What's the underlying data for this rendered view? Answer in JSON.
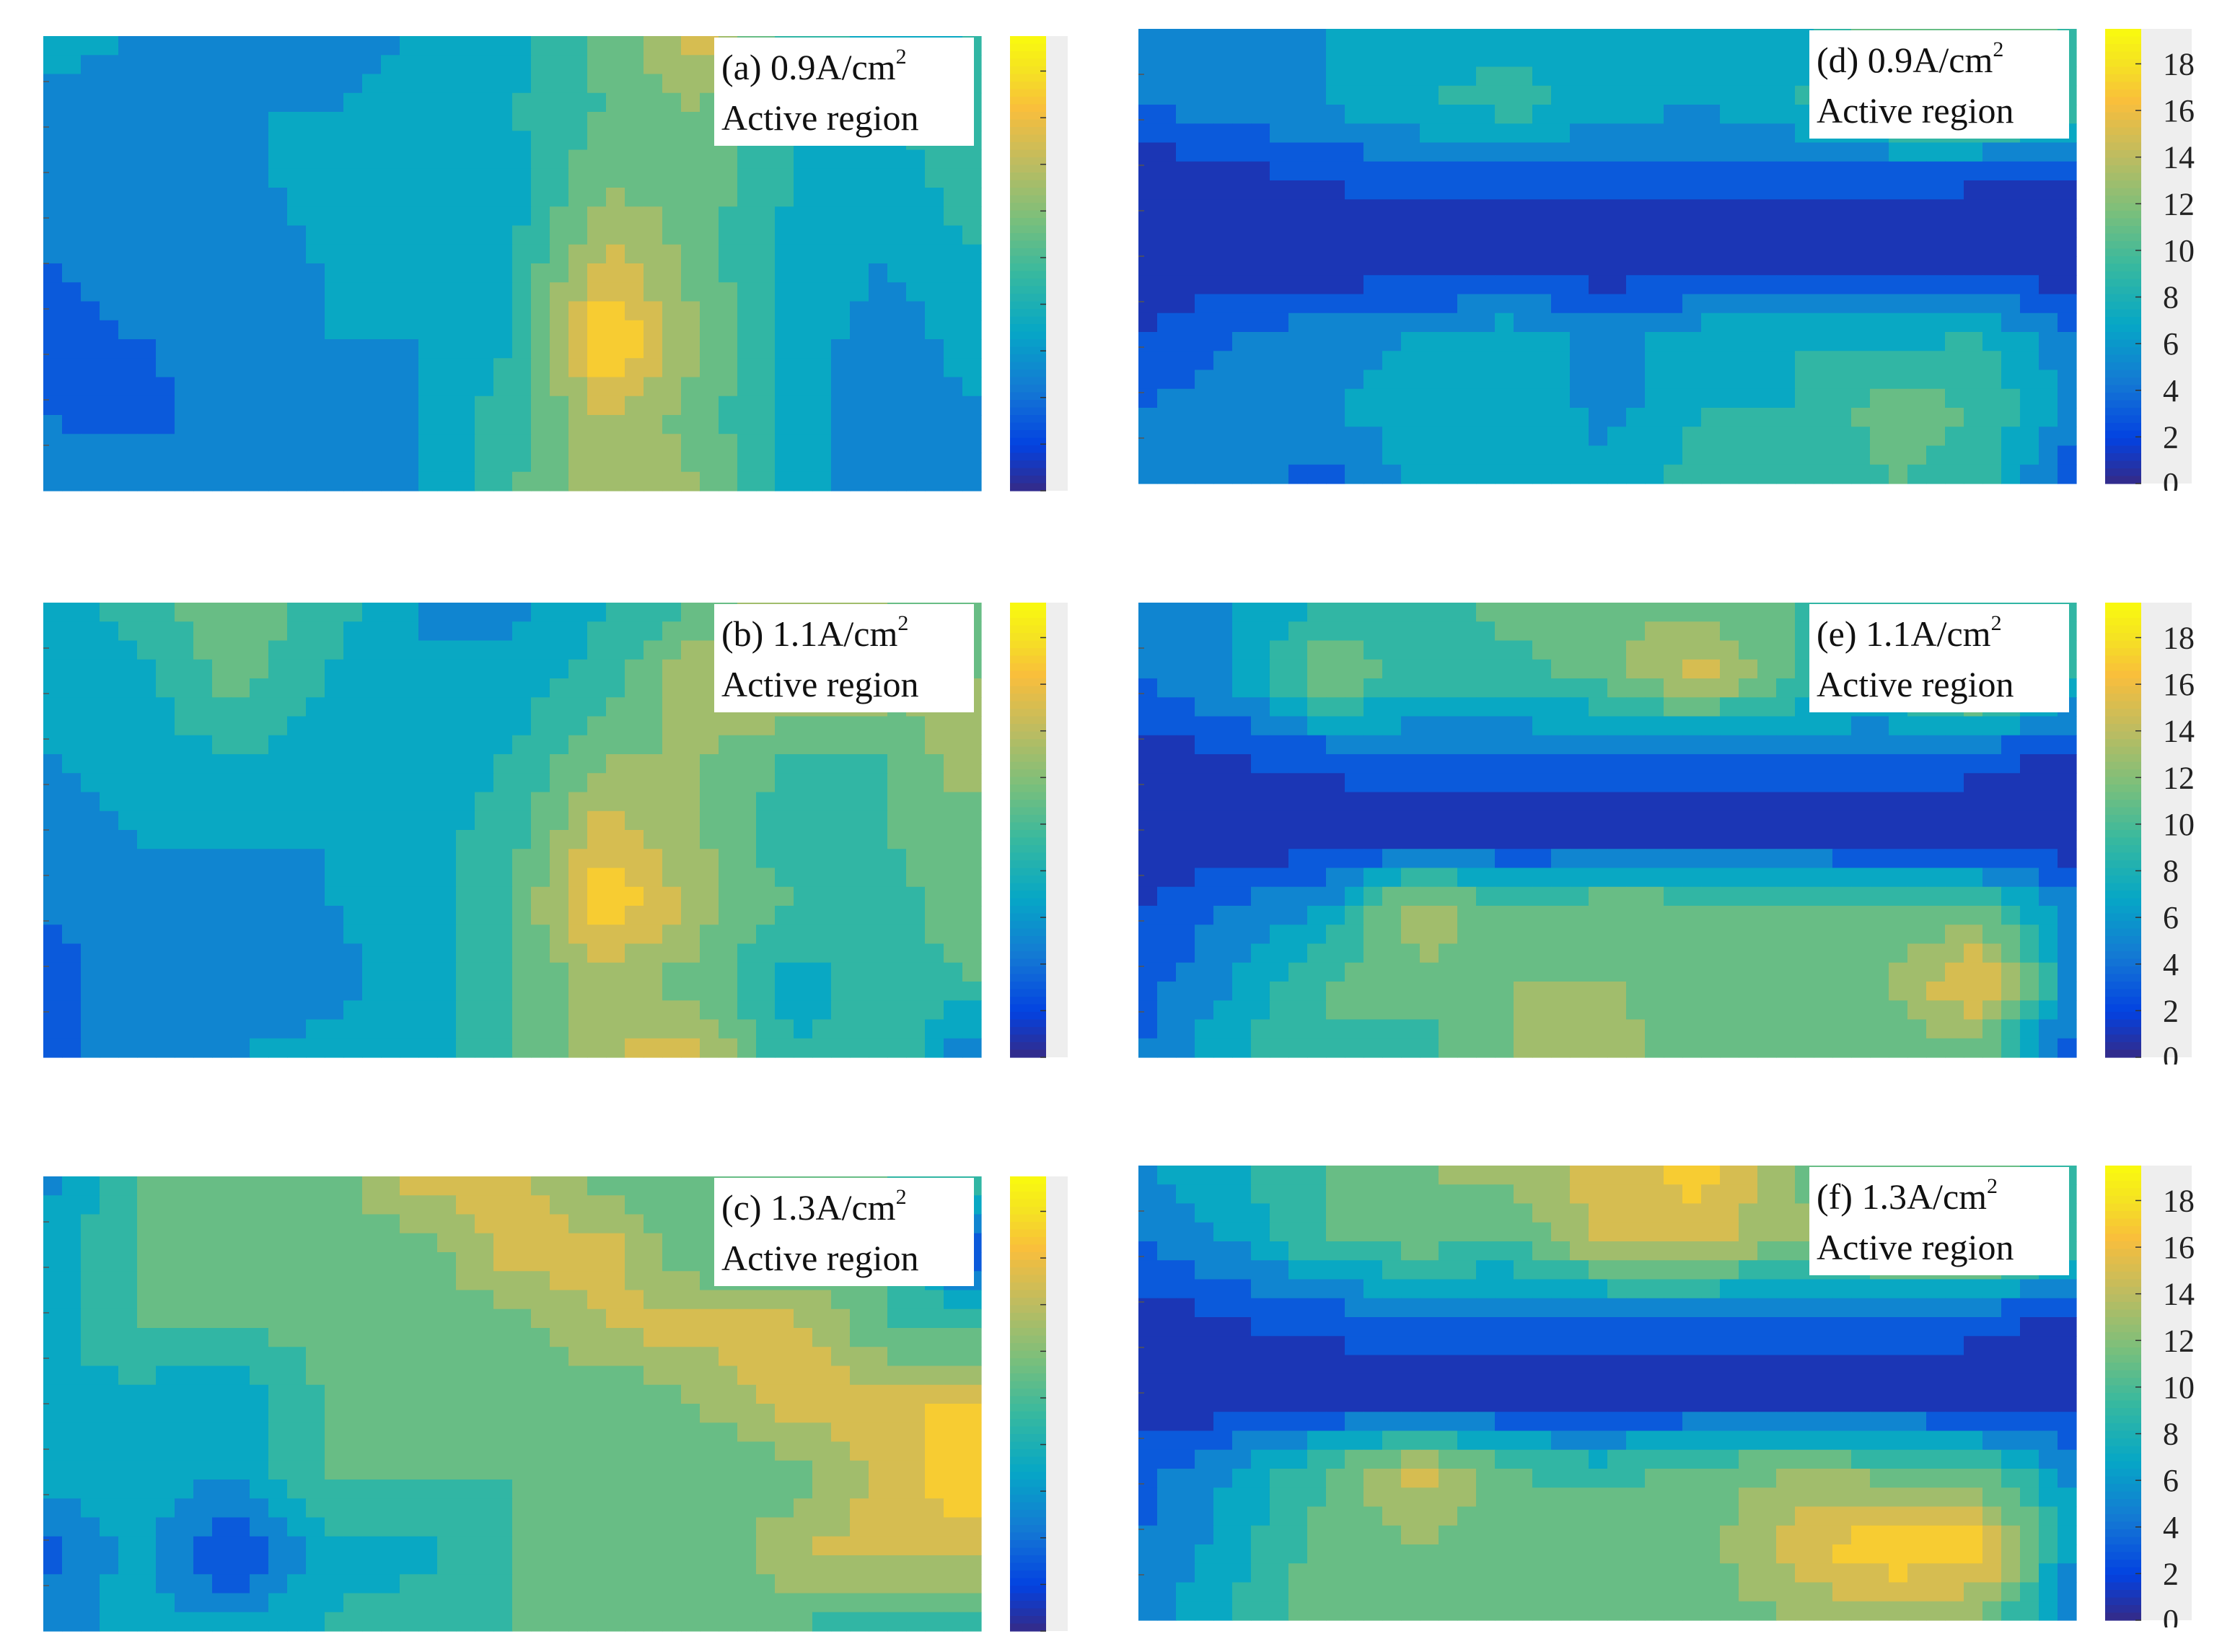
{
  "chart_data": [
    {
      "id": "a",
      "type": "contour",
      "label_line1": "(a) 0.9A/cm",
      "label_sup": "2",
      "label_line2": "Active region",
      "colorbar_ticks": [
        "18",
        "16",
        "14",
        "12",
        "10",
        "8",
        "6",
        "4",
        "2",
        "0"
      ],
      "zlim": [
        0,
        19.5
      ],
      "grid": [
        [
          7,
          6,
          6,
          5,
          6,
          7,
          11,
          15,
          9,
          7,
          8
        ],
        [
          5,
          5,
          6,
          6,
          7,
          8,
          10,
          12,
          8,
          8,
          10
        ],
        [
          5,
          4,
          5,
          7,
          6,
          7,
          12,
          11,
          8,
          7,
          9
        ],
        [
          4,
          5,
          5,
          6,
          6,
          8,
          15,
          11,
          7,
          6,
          8
        ],
        [
          3,
          4,
          5,
          6,
          6,
          8,
          19,
          12,
          7,
          5,
          7
        ],
        [
          4,
          3,
          5,
          5,
          6,
          9,
          14,
          11,
          7,
          4,
          6
        ],
        [
          5,
          6,
          5,
          5,
          6,
          10,
          13,
          12,
          7,
          5,
          6
        ]
      ]
    },
    {
      "id": "b",
      "type": "contour",
      "label_line1": "(b) 1.1A/cm",
      "label_sup": "2",
      "label_line2": "Active region",
      "colorbar_ticks": [
        "18",
        "16",
        "14",
        "12",
        "10",
        "8",
        "6",
        "4",
        "2",
        "0"
      ],
      "zlim": [
        0,
        19.5
      ],
      "grid": [
        [
          7,
          9,
          12,
          9,
          6,
          5,
          8,
          10,
          14,
          12,
          10
        ],
        [
          6,
          7,
          11,
          8,
          6,
          7,
          9,
          14,
          15,
          13,
          12
        ],
        [
          6,
          7,
          8,
          7,
          7,
          8,
          12,
          12,
          10,
          10,
          14
        ],
        [
          5,
          6,
          7,
          6,
          7,
          9,
          15,
          12,
          8,
          10,
          11
        ],
        [
          4,
          6,
          4,
          6,
          7,
          10,
          18,
          13,
          10,
          9,
          12
        ],
        [
          3,
          5,
          4,
          5,
          7,
          10,
          13,
          11,
          7,
          9,
          10
        ],
        [
          2,
          6,
          6,
          7,
          7,
          10,
          14,
          15,
          8,
          10,
          3
        ]
      ]
    },
    {
      "id": "c",
      "type": "contour",
      "label_line1": "(c) 1.3A/cm",
      "label_sup": "2",
      "label_line2": "Active region",
      "colorbar_ticks": [
        "18",
        "16",
        "14",
        "12",
        "10",
        "8",
        "6",
        "4",
        "2",
        "0"
      ],
      "zlim": [
        0,
        19.5
      ],
      "grid": [
        [
          5,
          10,
          10,
          11,
          15,
          15,
          11,
          11,
          10,
          10,
          9
        ],
        [
          7,
          10,
          10,
          10,
          11,
          15,
          15,
          10,
          10,
          10,
          1
        ],
        [
          7,
          10,
          10,
          11,
          10,
          11,
          14,
          15,
          15,
          10,
          9
        ],
        [
          8,
          7,
          6,
          10,
          10,
          11,
          10,
          12,
          15,
          15,
          17
        ],
        [
          7,
          7,
          6,
          10,
          10,
          10,
          11,
          10,
          11,
          15,
          18
        ],
        [
          3,
          7,
          1,
          7,
          7,
          10,
          10,
          10,
          14,
          15,
          14
        ],
        [
          5,
          7,
          7,
          8,
          10,
          10,
          11,
          11,
          10,
          7,
          9
        ]
      ]
    },
    {
      "id": "d",
      "type": "contour",
      "label_line1": "(d) 0.9A/cm",
      "label_sup": "2",
      "label_line2": "Active region",
      "colorbar_ticks": [
        "18",
        "16",
        "14",
        "12",
        "10",
        "8",
        "6",
        "4",
        "2",
        "0"
      ],
      "zlim": [
        0,
        19.5
      ],
      "grid": [
        [
          4,
          5,
          6,
          7,
          7,
          8,
          7,
          7,
          12,
          10,
          10
        ],
        [
          4,
          5,
          6,
          8,
          9,
          7,
          6,
          8,
          11,
          13,
          9
        ],
        [
          0,
          1,
          2,
          3,
          3,
          3,
          3,
          3,
          3,
          2,
          1
        ],
        [
          0,
          0,
          0,
          0,
          0,
          0,
          0,
          0,
          0,
          0,
          0
        ],
        [
          2,
          4,
          5,
          6,
          7,
          5,
          7,
          8,
          7,
          8,
          4
        ],
        [
          4,
          5,
          6,
          7,
          8,
          5,
          8,
          8,
          11,
          10,
          5
        ],
        [
          4,
          5,
          3,
          7,
          8,
          7,
          9,
          8,
          10,
          9,
          2
        ]
      ]
    },
    {
      "id": "e",
      "type": "contour",
      "label_line1": "(e) 1.1A/cm",
      "label_sup": "2",
      "label_line2": "Active region",
      "colorbar_ticks": [
        "18",
        "16",
        "14",
        "12",
        "10",
        "8",
        "6",
        "4",
        "2",
        "0"
      ],
      "zlim": [
        0,
        19.5
      ],
      "grid": [
        [
          5,
          6,
          8,
          9,
          11,
          12,
          11,
          10,
          10,
          9,
          10
        ],
        [
          4,
          6,
          12,
          9,
          9,
          11,
          15,
          10,
          9,
          15,
          8
        ],
        [
          1,
          2,
          3,
          4,
          4,
          4,
          4,
          4,
          4,
          3,
          1
        ],
        [
          0,
          0,
          0,
          0,
          0,
          0,
          0,
          0,
          0,
          0,
          0
        ],
        [
          2,
          4,
          6,
          14,
          10,
          12,
          11,
          11,
          10,
          10,
          4
        ],
        [
          3,
          6,
          10,
          11,
          12,
          12,
          11,
          12,
          12,
          17,
          5
        ],
        [
          4,
          8,
          10,
          9,
          12,
          13,
          11,
          10,
          11,
          10,
          2
        ]
      ]
    },
    {
      "id": "f",
      "type": "contour",
      "label_line1": "(f) 1.3A/cm",
      "label_sup": "2",
      "label_line2": "Active region",
      "colorbar_ticks": [
        "18",
        "16",
        "14",
        "12",
        "10",
        "8",
        "6",
        "4",
        "2",
        "0"
      ],
      "zlim": [
        0,
        19.5
      ],
      "grid": [
        [
          6,
          8,
          10,
          12,
          13,
          15,
          17,
          12,
          10,
          10,
          9
        ],
        [
          4,
          6,
          10,
          11,
          10,
          15,
          15,
          12,
          14,
          15,
          9
        ],
        [
          1,
          2,
          3,
          4,
          4,
          4,
          4,
          4,
          4,
          3,
          1
        ],
        [
          0,
          0,
          0,
          0,
          0,
          0,
          0,
          0,
          0,
          0,
          0
        ],
        [
          3,
          6,
          10,
          15,
          10,
          9,
          11,
          12,
          11,
          10,
          5
        ],
        [
          4,
          7,
          11,
          12,
          11,
          12,
          11,
          15,
          18,
          17,
          6
        ],
        [
          5,
          8,
          12,
          10,
          12,
          12,
          11,
          12,
          13,
          12,
          3
        ]
      ]
    }
  ]
}
